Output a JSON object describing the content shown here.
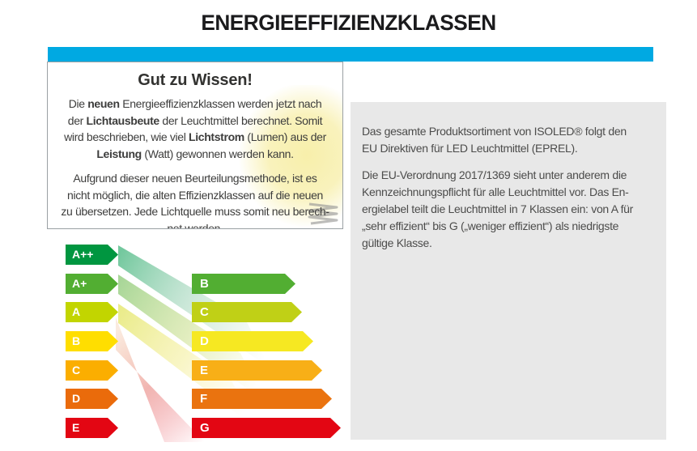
{
  "page": {
    "title": "ENERGIEEFFIZIENZKLASSEN"
  },
  "colors": {
    "accent_cyan": "#00A9E2",
    "panel_gray": "#E8E8E8",
    "box_border": "#9AA0A4"
  },
  "info_box": {
    "heading": "Gut zu Wissen!",
    "paragraph1": [
      {
        "t": "Die ",
        "b": false
      },
      {
        "t": "neuen",
        "b": true
      },
      {
        "t": " Energieeffizienzklassen werden jetzt nach\nder ",
        "b": false
      },
      {
        "t": "Lichtausbeute",
        "b": true
      },
      {
        "t": " der Leuchtmittel berechnet. Somit\nwird beschrieben, wie viel ",
        "b": false
      },
      {
        "t": "Lichtstrom",
        "b": true
      },
      {
        "t": " (Lumen) aus der\n",
        "b": false
      },
      {
        "t": "Leistung",
        "b": true
      },
      {
        "t": " (Watt) gewonnen werden kann.",
        "b": false
      }
    ],
    "paragraph2": [
      {
        "t": "Aufgrund dieser neuen Beurteilungsmethode, ist es\nnicht möglich, die alten Effizienzklassen auf die neuen\nzu übersetzen. Jede Lichtquelle muss somit neu berech-\nnet werden.",
        "b": false
      }
    ]
  },
  "info_panel": {
    "paragraph1": "Das gesamte Produktsortiment von ISOLED® folgt den\nEU Direktiven für LED Leuchtmittel (EPREL).",
    "paragraph2": "Die EU-Verordnung 2017/1369 sieht unter anderem die\nKennzeichnungspflicht für alle Leuchtmittel vor. Das En-\nergielabel teilt die Leuchtmittel in 7 Klassen ein: von A für\n„sehr effizient“ bis G („weniger effizient“) als niedrigste\ngültige Klasse."
  },
  "chart_data": {
    "type": "diagram",
    "old_scale": {
      "labels": [
        "A++",
        "A+",
        "A",
        "B",
        "C",
        "D",
        "E"
      ],
      "colors": [
        "#009640",
        "#52AE32",
        "#C2D500",
        "#FFDE00",
        "#FBAE00",
        "#EA6B0B",
        "#E30613"
      ]
    },
    "new_scale": {
      "labels": [
        "B",
        "C",
        "D",
        "E",
        "F",
        "G"
      ],
      "colors": [
        "#52AE32",
        "#C0D016",
        "#F6E822",
        "#F8AF17",
        "#EA730F",
        "#E30613"
      ]
    }
  }
}
